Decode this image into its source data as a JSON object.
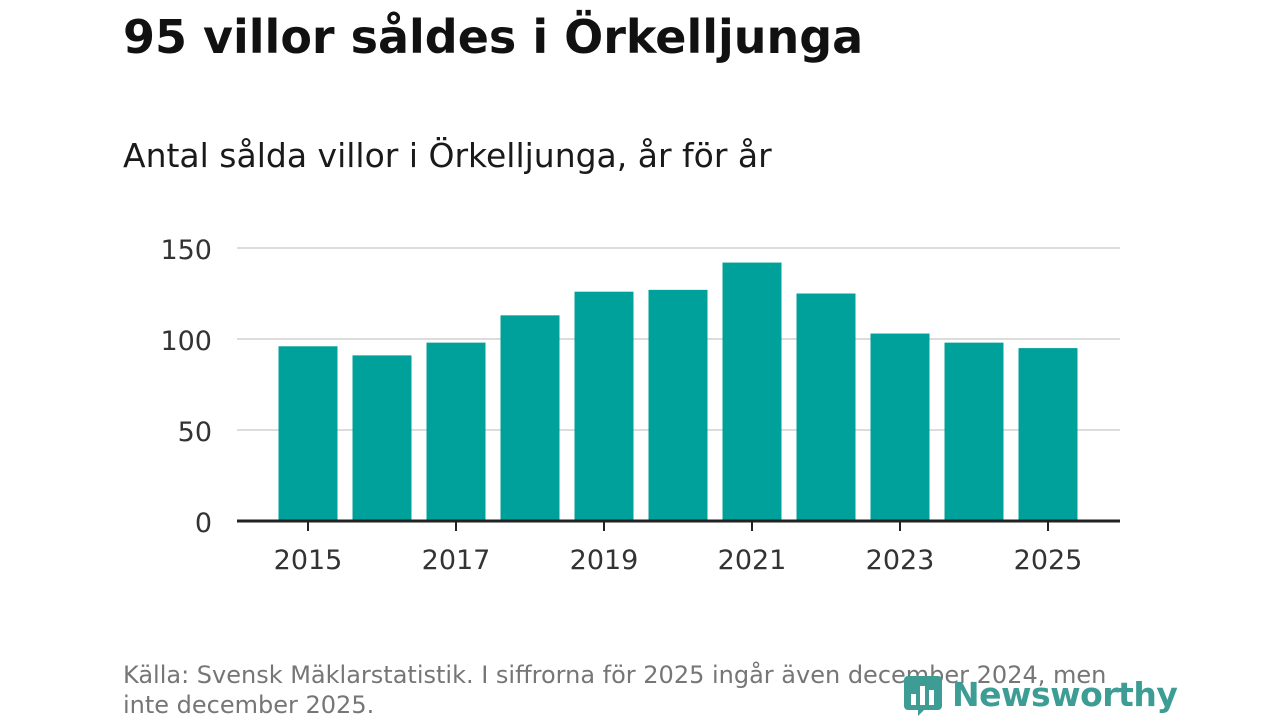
{
  "chart_data": {
    "type": "bar",
    "title": "95 villor såldes i Örkelljunga",
    "subtitle": "Antal sålda villor i Örkelljunga, år för år",
    "categories": [
      "2015",
      "2016",
      "2017",
      "2018",
      "2019",
      "2020",
      "2021",
      "2022",
      "2023",
      "2024",
      "2025"
    ],
    "values": [
      96,
      91,
      98,
      113,
      126,
      127,
      142,
      125,
      103,
      98,
      95
    ],
    "x_tick_labels": [
      "2015",
      "2017",
      "2019",
      "2021",
      "2023",
      "2025"
    ],
    "y_ticks": [
      0,
      50,
      100,
      150
    ],
    "ylim": [
      0,
      150
    ],
    "xlabel": "",
    "ylabel": "",
    "grid": true,
    "bar_color": "#00a19a",
    "source": "Källa: Svensk Mäklarstatistik. I siffrorna för 2025 ingår även december 2024, men inte december 2025."
  },
  "branding": {
    "logo_text": "Newsworthy",
    "logo_color": "#3d9c94",
    "logo_icon": "bar-chart-icon"
  }
}
